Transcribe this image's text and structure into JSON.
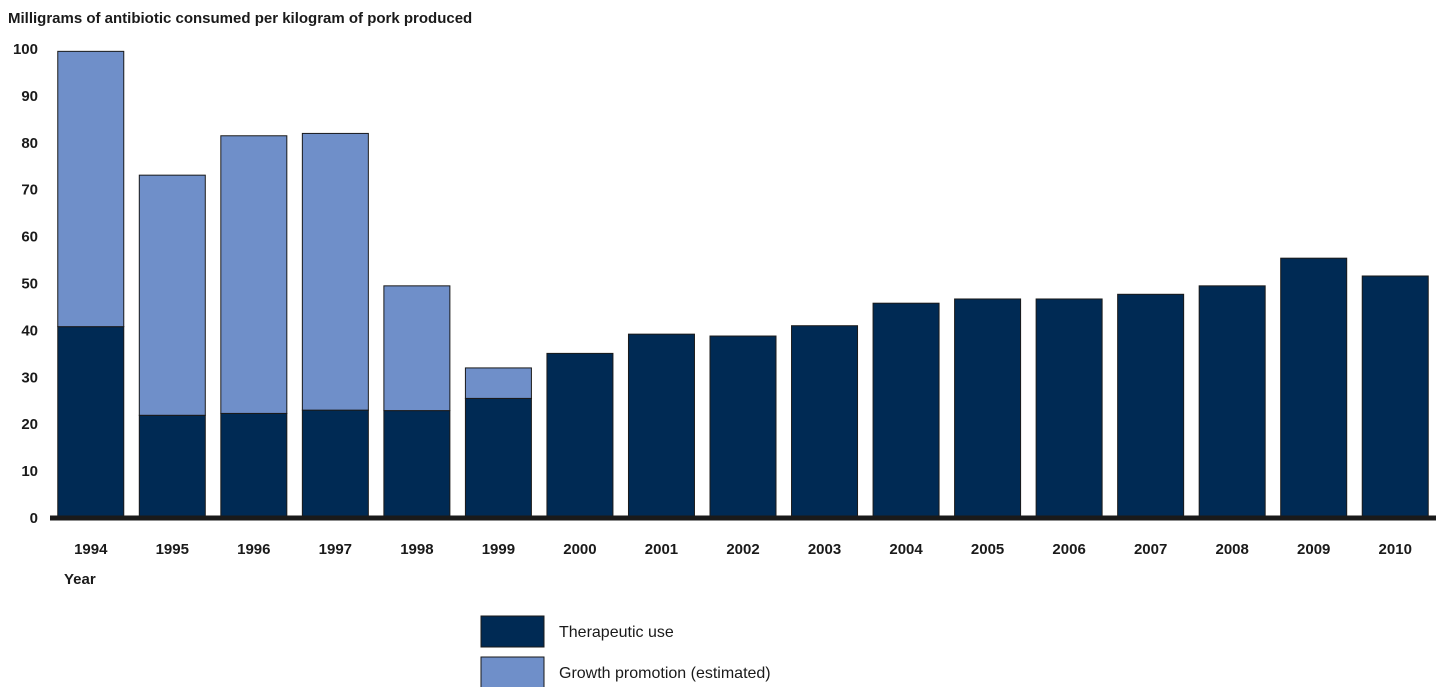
{
  "chart_data": {
    "type": "bar",
    "stacked": true,
    "title": "Milligrams of antibiotic consumed per kilogram of pork produced",
    "xlabel": "Year",
    "ylabel": "",
    "ylim": [
      0,
      100
    ],
    "yticks": [
      0,
      10,
      20,
      30,
      40,
      50,
      60,
      70,
      80,
      90,
      100
    ],
    "categories": [
      "1994",
      "1995",
      "1996",
      "1997",
      "1998",
      "1999",
      "2000",
      "2001",
      "2002",
      "2003",
      "2004",
      "2005",
      "2006",
      "2007",
      "2008",
      "2009",
      "2010"
    ],
    "series": [
      {
        "name": "Therapeutic use",
        "color": "#002a54",
        "values": [
          40.8,
          21.9,
          22.3,
          23.0,
          22.9,
          25.5,
          35.1,
          39.2,
          38.8,
          41.0,
          45.8,
          46.7,
          46.7,
          47.7,
          49.5,
          55.4,
          51.6
        ]
      },
      {
        "name": "Growth promotion (estimated)",
        "color": "#6f8fc9",
        "values": [
          58.7,
          51.2,
          59.2,
          59.0,
          26.6,
          6.5,
          0,
          0,
          0,
          0,
          0,
          0,
          0,
          0,
          0,
          0,
          0
        ]
      }
    ],
    "grid": false,
    "legend_position": "bottom-center"
  }
}
